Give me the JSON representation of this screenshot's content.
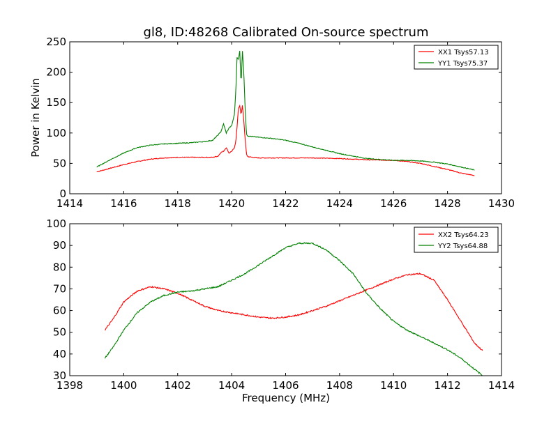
{
  "chart_data": [
    {
      "type": "line",
      "title": "gl8, ID:48268 Calibrated On-source spectrum",
      "xlabel": "",
      "ylabel": "Power in Kelvin",
      "xlim": [
        1414,
        1430
      ],
      "ylim": [
        0,
        250
      ],
      "xticks": [
        1414,
        1416,
        1418,
        1420,
        1422,
        1424,
        1426,
        1428,
        1430
      ],
      "yticks": [
        0,
        50,
        100,
        150,
        200,
        250
      ],
      "legend_position": "top-right",
      "grid": false,
      "series": [
        {
          "name": "XX1 Tsys57.13",
          "color": "#ff0000",
          "x": [
            1415.0,
            1415.5,
            1416.0,
            1416.5,
            1417.0,
            1417.5,
            1418.0,
            1418.5,
            1419.0,
            1419.3,
            1419.5,
            1419.6,
            1419.7,
            1419.8,
            1419.9,
            1420.0,
            1420.1,
            1420.15,
            1420.2,
            1420.25,
            1420.3,
            1420.35,
            1420.4,
            1420.45,
            1420.5,
            1420.55,
            1420.6,
            1420.8,
            1421.0,
            1422.0,
            1423.0,
            1424.0,
            1425.0,
            1426.0,
            1426.5,
            1427.0,
            1427.5,
            1428.0,
            1428.5,
            1429.0
          ],
          "y": [
            36,
            42,
            48,
            53,
            57,
            59,
            60,
            60,
            60,
            60,
            62,
            68,
            70,
            76,
            67,
            70,
            75,
            85,
            110,
            140,
            145,
            130,
            145,
            120,
            90,
            65,
            61,
            60,
            59,
            59,
            59,
            58,
            56,
            55,
            53,
            50,
            45,
            40,
            34,
            30
          ]
        },
        {
          "name": "YY1 Tsys75.37",
          "color": "#008000",
          "x": [
            1415.0,
            1415.5,
            1416.0,
            1416.5,
            1417.0,
            1417.5,
            1418.0,
            1418.5,
            1419.0,
            1419.3,
            1419.5,
            1419.6,
            1419.7,
            1419.8,
            1419.9,
            1420.0,
            1420.1,
            1420.15,
            1420.2,
            1420.25,
            1420.3,
            1420.35,
            1420.4,
            1420.45,
            1420.5,
            1420.55,
            1420.6,
            1420.8,
            1421.0,
            1421.5,
            1422.0,
            1422.5,
            1423.0,
            1424.0,
            1425.0,
            1426.0,
            1426.5,
            1427.0,
            1427.5,
            1428.0,
            1428.5,
            1429.0
          ],
          "y": [
            44,
            56,
            67,
            76,
            80,
            82,
            83,
            84,
            86,
            88,
            97,
            102,
            115,
            100,
            108,
            112,
            130,
            165,
            225,
            220,
            235,
            180,
            235,
            200,
            140,
            98,
            95,
            94,
            93,
            91,
            88,
            83,
            77,
            66,
            58,
            55,
            55,
            54,
            52,
            49,
            44,
            39
          ]
        }
      ]
    },
    {
      "type": "line",
      "title": "",
      "xlabel": "Frequency (MHz)",
      "ylabel": "",
      "xlim": [
        1398,
        1414
      ],
      "ylim": [
        30,
        100
      ],
      "xticks": [
        1398,
        1400,
        1402,
        1404,
        1406,
        1408,
        1410,
        1412,
        1414
      ],
      "yticks": [
        30,
        40,
        50,
        60,
        70,
        80,
        90,
        100
      ],
      "legend_position": "top-right",
      "grid": false,
      "series": [
        {
          "name": "XX2 Tsys64.23",
          "color": "#ff0000",
          "x": [
            1399.3,
            1399.6,
            1400.0,
            1400.5,
            1401.0,
            1401.5,
            1402.0,
            1402.5,
            1403.0,
            1403.5,
            1404.0,
            1404.5,
            1405.0,
            1405.5,
            1406.0,
            1406.5,
            1407.0,
            1407.5,
            1408.0,
            1408.5,
            1409.0,
            1409.5,
            1410.0,
            1410.5,
            1411.0,
            1411.5,
            1412.0,
            1412.5,
            1413.0,
            1413.3
          ],
          "y": [
            51,
            56,
            64,
            69,
            71,
            70,
            68,
            65,
            62,
            60,
            59,
            58,
            57,
            56.5,
            57,
            58,
            60,
            62,
            64.5,
            67,
            69.5,
            72,
            74.5,
            76.5,
            77,
            74,
            65,
            55,
            45,
            41.5
          ]
        },
        {
          "name": "YY2 Tsys64.88",
          "color": "#008000",
          "x": [
            1399.3,
            1399.6,
            1400.0,
            1400.5,
            1401.0,
            1401.5,
            1402.0,
            1402.5,
            1403.0,
            1403.5,
            1404.0,
            1404.5,
            1405.0,
            1405.5,
            1406.0,
            1406.5,
            1407.0,
            1407.5,
            1408.0,
            1408.5,
            1409.0,
            1409.5,
            1410.0,
            1410.5,
            1411.0,
            1411.5,
            1412.0,
            1412.5,
            1413.0,
            1413.3
          ],
          "y": [
            38,
            43,
            51,
            59,
            64,
            67,
            68.5,
            69,
            70,
            71,
            74,
            77,
            81,
            85,
            89,
            91,
            91,
            88,
            83,
            77,
            68,
            61,
            55,
            51,
            48,
            45,
            42,
            38,
            33,
            30
          ]
        }
      ]
    }
  ]
}
